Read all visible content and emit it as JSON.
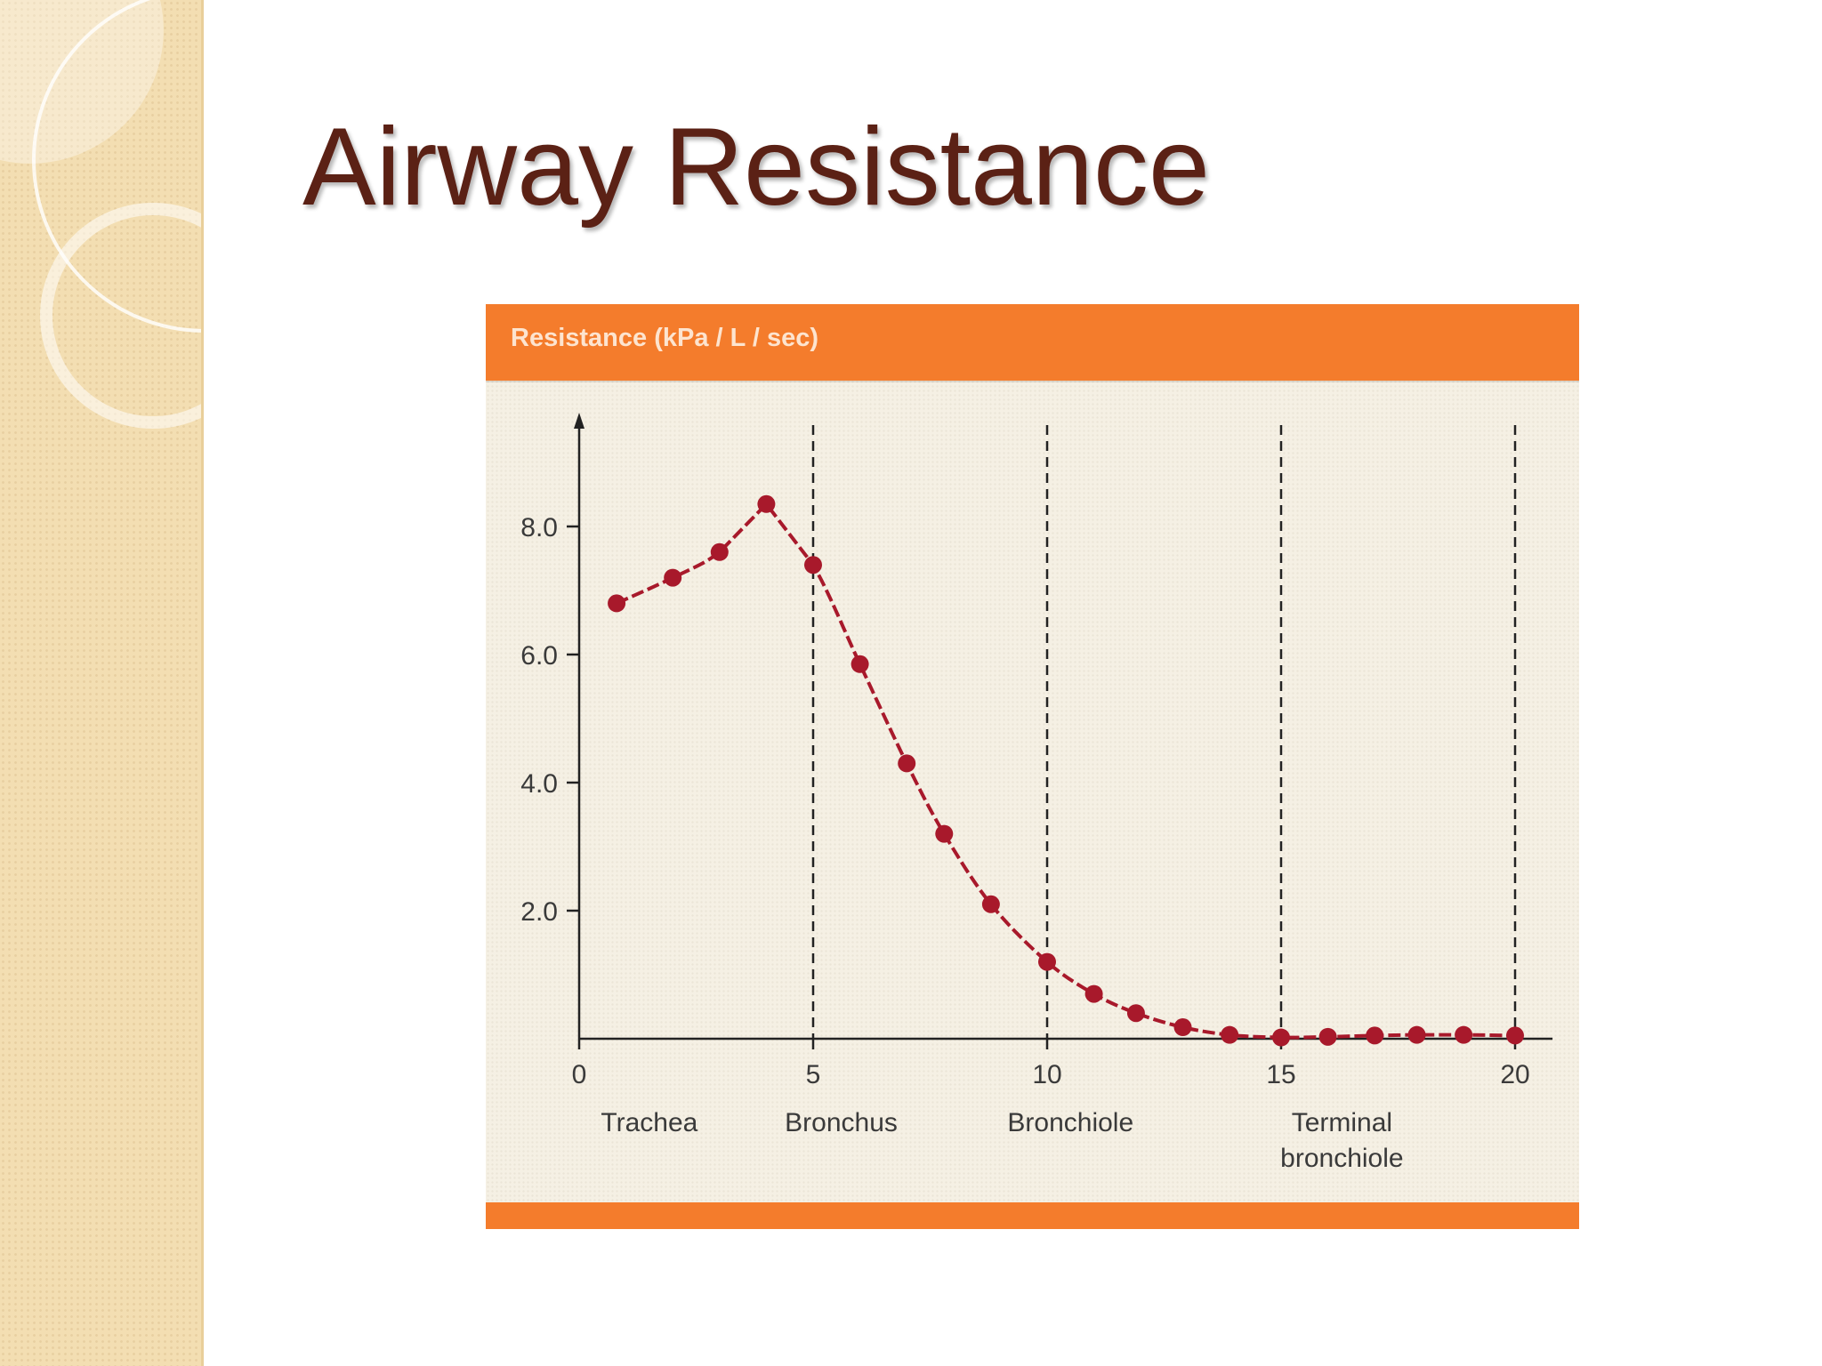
{
  "slide": {
    "title": "Airway Resistance"
  },
  "colors": {
    "title": "#5b2115",
    "header_band": "#f47c2c",
    "header_text": "#fde4cf",
    "line": "#a8192b",
    "sidebar": "#f3deb2",
    "plot_background": "#f5f0e4"
  },
  "chart_data": {
    "type": "line",
    "title": "Resistance (kPa / L / sec)",
    "ylabel": "Resistance (kPa / L / sec)",
    "xlabel": "",
    "xlim": [
      0,
      20.8
    ],
    "ylim": [
      0,
      10
    ],
    "x_ticks": [
      "0",
      "5",
      "10",
      "15",
      "20"
    ],
    "y_ticks": [
      "8.0",
      "6.0",
      "4.0",
      "2.0"
    ],
    "grid": false,
    "dashed_guides_at_x": [
      5,
      10,
      15,
      20
    ],
    "segment_labels": [
      {
        "x": 1.5,
        "lines": [
          "Trachea"
        ]
      },
      {
        "x": 5.6,
        "lines": [
          "Bronchus"
        ]
      },
      {
        "x": 10.5,
        "lines": [
          "Bronchiole"
        ]
      },
      {
        "x": 16.3,
        "lines": [
          "Terminal",
          "bronchiole"
        ]
      }
    ],
    "series": [
      {
        "x": [
          0.8,
          2,
          3,
          4,
          5,
          6,
          7,
          7.8,
          8.8,
          10,
          11,
          11.9,
          12.9,
          13.9,
          15,
          16,
          17,
          17.9,
          18.9,
          20
        ],
        "values": [
          6.8,
          7.2,
          7.6,
          8.35,
          7.4,
          5.85,
          4.3,
          3.2,
          2.1,
          1.2,
          0.7,
          0.4,
          0.18,
          0.06,
          0.02,
          0.03,
          0.05,
          0.06,
          0.06,
          0.05
        ]
      }
    ]
  }
}
